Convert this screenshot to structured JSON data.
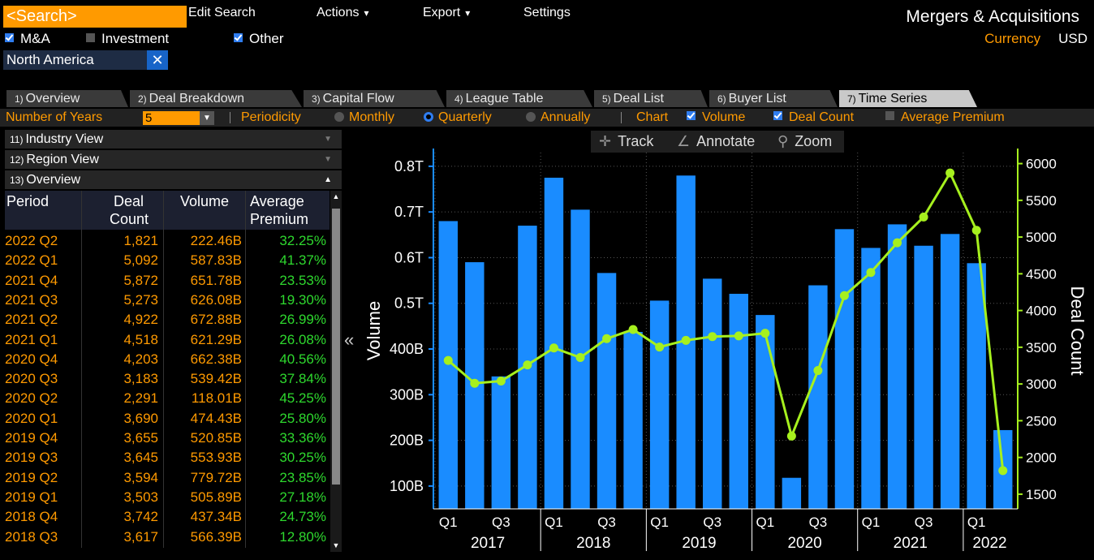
{
  "menu": {
    "search_placeholder": "<Search>",
    "edit_search": "Edit Search",
    "actions": "Actions",
    "export": "Export",
    "settings": "Settings",
    "title": "Mergers & Acquisitions"
  },
  "filters": {
    "mna": "M&A",
    "investment": "Investment",
    "other": "Other",
    "currency_label": "Currency",
    "currency_value": "USD",
    "region": "North America",
    "region_close": "✕"
  },
  "tabs": [
    {
      "num": "1)",
      "label": "Overview"
    },
    {
      "num": "2)",
      "label": "Deal Breakdown"
    },
    {
      "num": "3)",
      "label": "Capital Flow"
    },
    {
      "num": "4)",
      "label": "League Table"
    },
    {
      "num": "5)",
      "label": "Deal List"
    },
    {
      "num": "6)",
      "label": "Buyer List"
    },
    {
      "num": "7)",
      "label": "Time Series"
    }
  ],
  "controls": {
    "years_label": "Number of Years",
    "years_value": "5",
    "periodicity_label": "Periodicity",
    "monthly": "Monthly",
    "quarterly": "Quarterly",
    "annually": "Annually",
    "chart_label": "Chart",
    "volume": "Volume",
    "deal_count": "Deal Count",
    "average_premium": "Average Premium"
  },
  "left_panel": {
    "industry_view": {
      "num": "11)",
      "label": "Industry View"
    },
    "region_view": {
      "num": "12)",
      "label": "Region View"
    },
    "overview": {
      "num": "13)",
      "label": "Overview"
    },
    "col_period": "Period",
    "col_deal_1": "Deal",
    "col_deal_2": "Count",
    "col_volume": "Volume",
    "col_avg_1": "Average",
    "col_avg_2": "Premium",
    "rows": [
      {
        "period": "2022 Q2",
        "deal_count": "1,821",
        "volume": "222.46B",
        "premium": "32.25%"
      },
      {
        "period": "2022 Q1",
        "deal_count": "5,092",
        "volume": "587.83B",
        "premium": "41.37%"
      },
      {
        "period": "2021 Q4",
        "deal_count": "5,872",
        "volume": "651.78B",
        "premium": "23.53%"
      },
      {
        "period": "2021 Q3",
        "deal_count": "5,273",
        "volume": "626.08B",
        "premium": "19.30%"
      },
      {
        "period": "2021 Q2",
        "deal_count": "4,922",
        "volume": "672.88B",
        "premium": "26.99%"
      },
      {
        "period": "2021 Q1",
        "deal_count": "4,518",
        "volume": "621.29B",
        "premium": "26.08%"
      },
      {
        "period": "2020 Q4",
        "deal_count": "4,203",
        "volume": "662.38B",
        "premium": "40.56%"
      },
      {
        "period": "2020 Q3",
        "deal_count": "3,183",
        "volume": "539.42B",
        "premium": "37.84%"
      },
      {
        "period": "2020 Q2",
        "deal_count": "2,291",
        "volume": "118.01B",
        "premium": "45.25%"
      },
      {
        "period": "2020 Q1",
        "deal_count": "3,690",
        "volume": "474.43B",
        "premium": "25.80%"
      },
      {
        "period": "2019 Q4",
        "deal_count": "3,655",
        "volume": "520.85B",
        "premium": "33.36%"
      },
      {
        "period": "2019 Q3",
        "deal_count": "3,645",
        "volume": "553.93B",
        "premium": "30.25%"
      },
      {
        "period": "2019 Q2",
        "deal_count": "3,594",
        "volume": "779.72B",
        "premium": "23.85%"
      },
      {
        "period": "2019 Q1",
        "deal_count": "3,503",
        "volume": "505.89B",
        "premium": "27.18%"
      },
      {
        "period": "2018 Q4",
        "deal_count": "3,742",
        "volume": "437.34B",
        "premium": "24.73%"
      },
      {
        "period": "2018 Q3",
        "deal_count": "3,617",
        "volume": "566.39B",
        "premium": "12.80%"
      }
    ]
  },
  "chart_toolbar": {
    "track": "Track",
    "annotate": "Annotate",
    "zoom": "Zoom"
  },
  "colors": {
    "bar": "#1a8cff",
    "line": "#a6f01e",
    "orange": "#ff9a00",
    "menu_red": "#8c0e12"
  },
  "chart_data": {
    "type": "bar+line",
    "ylabel": "Volume",
    "y2label": "Deal Count",
    "ylim": [
      0.05,
      0.83
    ],
    "y2lim": [
      1300,
      6150
    ],
    "yticks": [
      "100B",
      "200B",
      "300B",
      "400B",
      "0.5T",
      "0.6T",
      "0.7T",
      "0.8T"
    ],
    "yticks_values": [
      0.1,
      0.2,
      0.3,
      0.4,
      0.5,
      0.6,
      0.7,
      0.8
    ],
    "y2ticks": [
      1500,
      2000,
      2500,
      3000,
      3500,
      4000,
      4500,
      5000,
      5500,
      6000
    ],
    "quarter_labels": [
      "Q1",
      "Q3",
      "Q1",
      "Q3",
      "Q1",
      "Q3",
      "Q1",
      "Q3",
      "Q1",
      "Q3",
      "Q1"
    ],
    "year_labels": [
      "2017",
      "2018",
      "2019",
      "2020",
      "2021",
      "2022"
    ],
    "categories": [
      "2017 Q1",
      "2017 Q2",
      "2017 Q3",
      "2017 Q4",
      "2018 Q1",
      "2018 Q2",
      "2018 Q3",
      "2018 Q4",
      "2019 Q1",
      "2019 Q2",
      "2019 Q3",
      "2019 Q4",
      "2020 Q1",
      "2020 Q2",
      "2020 Q3",
      "2020 Q4",
      "2021 Q1",
      "2021 Q2",
      "2021 Q3",
      "2021 Q4",
      "2022 Q1",
      "2022 Q2"
    ],
    "series": [
      {
        "name": "Volume",
        "type": "bar",
        "values": [
          0.68,
          0.59,
          0.34,
          0.67,
          0.775,
          0.705,
          0.56639,
          0.43734,
          0.50589,
          0.77972,
          0.55393,
          0.52085,
          0.47443,
          0.11801,
          0.53942,
          0.66238,
          0.62129,
          0.67288,
          0.62608,
          0.65178,
          0.58783,
          0.22246
        ]
      },
      {
        "name": "Deal Count",
        "type": "line",
        "values": [
          3320,
          3010,
          3040,
          3260,
          3490,
          3360,
          3617,
          3742,
          3503,
          3594,
          3645,
          3655,
          3690,
          2291,
          3183,
          4203,
          4518,
          4922,
          5273,
          5872,
          5092,
          1821
        ]
      }
    ]
  }
}
